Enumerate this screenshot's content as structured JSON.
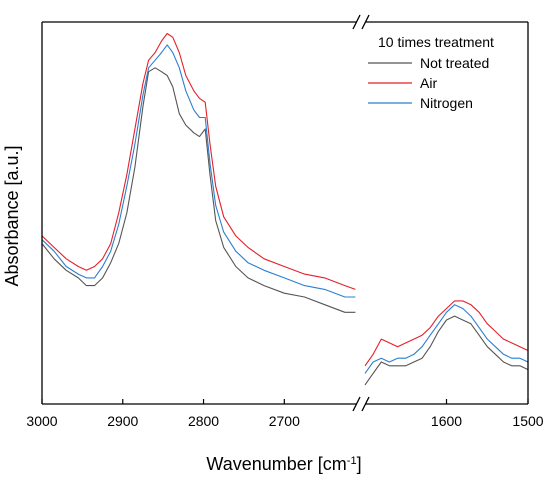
{
  "chart_data": {
    "type": "line",
    "xlabel": "Wavenumber [cm",
    "xlabel_sup": "-1",
    "xlabel_end": "]",
    "ylabel": "Absorbance [a.u.]",
    "x_axis_reversed": true,
    "broken_x_axis": true,
    "y_ticks_shown": false,
    "legend": {
      "title": "10 times treatment",
      "placement": "top-right",
      "entries": [
        "Not treated",
        "Air",
        "Nitrogen"
      ]
    },
    "panels": [
      {
        "xlim": [
          3000,
          2610
        ],
        "xticks": [
          {
            "value": 3000,
            "label": "3000"
          },
          {
            "value": 2900,
            "label": "2900"
          },
          {
            "value": 2800,
            "label": "2800"
          },
          {
            "value": 2700,
            "label": "2700"
          }
        ]
      },
      {
        "xlim": [
          1700,
          1500
        ],
        "xticks": [
          {
            "value": 1600,
            "label": "1600"
          },
          {
            "value": 1500,
            "label": "1500"
          }
        ]
      }
    ],
    "ylim": [
      0,
      1.0
    ],
    "series": [
      {
        "name": "Not treated",
        "color": "#555555",
        "panel1": [
          [
            3000,
            0.42
          ],
          [
            2985,
            0.38
          ],
          [
            2970,
            0.35
          ],
          [
            2955,
            0.33
          ],
          [
            2945,
            0.31
          ],
          [
            2935,
            0.31
          ],
          [
            2925,
            0.33
          ],
          [
            2915,
            0.37
          ],
          [
            2905,
            0.42
          ],
          [
            2895,
            0.5
          ],
          [
            2885,
            0.62
          ],
          [
            2875,
            0.78
          ],
          [
            2868,
            0.87
          ],
          [
            2860,
            0.88
          ],
          [
            2852,
            0.87
          ],
          [
            2845,
            0.86
          ],
          [
            2838,
            0.83
          ],
          [
            2830,
            0.76
          ],
          [
            2822,
            0.73
          ],
          [
            2812,
            0.71
          ],
          [
            2805,
            0.7
          ],
          [
            2798,
            0.72
          ],
          [
            2792,
            0.6
          ],
          [
            2785,
            0.48
          ],
          [
            2775,
            0.41
          ],
          [
            2760,
            0.36
          ],
          [
            2745,
            0.33
          ],
          [
            2725,
            0.31
          ],
          [
            2700,
            0.29
          ],
          [
            2675,
            0.28
          ],
          [
            2650,
            0.26
          ],
          [
            2625,
            0.24
          ],
          [
            2612,
            0.24
          ]
        ],
        "panel2": [
          [
            1700,
            0.05
          ],
          [
            1690,
            0.08
          ],
          [
            1680,
            0.11
          ],
          [
            1670,
            0.1
          ],
          [
            1660,
            0.1
          ],
          [
            1650,
            0.1
          ],
          [
            1640,
            0.11
          ],
          [
            1630,
            0.12
          ],
          [
            1620,
            0.15
          ],
          [
            1610,
            0.19
          ],
          [
            1600,
            0.22
          ],
          [
            1590,
            0.23
          ],
          [
            1580,
            0.22
          ],
          [
            1570,
            0.21
          ],
          [
            1560,
            0.18
          ],
          [
            1550,
            0.15
          ],
          [
            1540,
            0.13
          ],
          [
            1530,
            0.11
          ],
          [
            1520,
            0.1
          ],
          [
            1510,
            0.1
          ],
          [
            1500,
            0.09
          ]
        ]
      },
      {
        "name": "Air",
        "color": "#e4202a",
        "panel1": [
          [
            3000,
            0.44
          ],
          [
            2985,
            0.41
          ],
          [
            2970,
            0.38
          ],
          [
            2955,
            0.36
          ],
          [
            2945,
            0.35
          ],
          [
            2935,
            0.36
          ],
          [
            2925,
            0.38
          ],
          [
            2915,
            0.42
          ],
          [
            2905,
            0.5
          ],
          [
            2895,
            0.6
          ],
          [
            2885,
            0.72
          ],
          [
            2875,
            0.84
          ],
          [
            2868,
            0.9
          ],
          [
            2860,
            0.92
          ],
          [
            2852,
            0.95
          ],
          [
            2845,
            0.97
          ],
          [
            2838,
            0.96
          ],
          [
            2830,
            0.92
          ],
          [
            2822,
            0.86
          ],
          [
            2812,
            0.82
          ],
          [
            2805,
            0.8
          ],
          [
            2798,
            0.79
          ],
          [
            2792,
            0.68
          ],
          [
            2785,
            0.57
          ],
          [
            2775,
            0.49
          ],
          [
            2760,
            0.44
          ],
          [
            2745,
            0.41
          ],
          [
            2725,
            0.38
          ],
          [
            2700,
            0.36
          ],
          [
            2675,
            0.34
          ],
          [
            2650,
            0.33
          ],
          [
            2625,
            0.31
          ],
          [
            2612,
            0.3
          ]
        ],
        "panel2": [
          [
            1700,
            0.1
          ],
          [
            1690,
            0.13
          ],
          [
            1680,
            0.17
          ],
          [
            1670,
            0.16
          ],
          [
            1660,
            0.15
          ],
          [
            1650,
            0.16
          ],
          [
            1640,
            0.17
          ],
          [
            1630,
            0.18
          ],
          [
            1620,
            0.2
          ],
          [
            1610,
            0.23
          ],
          [
            1600,
            0.25
          ],
          [
            1590,
            0.27
          ],
          [
            1580,
            0.27
          ],
          [
            1570,
            0.26
          ],
          [
            1560,
            0.24
          ],
          [
            1550,
            0.21
          ],
          [
            1540,
            0.19
          ],
          [
            1530,
            0.17
          ],
          [
            1520,
            0.16
          ],
          [
            1510,
            0.15
          ],
          [
            1500,
            0.14
          ]
        ]
      },
      {
        "name": "Nitrogen",
        "color": "#2a7fd4",
        "panel1": [
          [
            3000,
            0.43
          ],
          [
            2985,
            0.4
          ],
          [
            2970,
            0.36
          ],
          [
            2955,
            0.34
          ],
          [
            2945,
            0.33
          ],
          [
            2935,
            0.33
          ],
          [
            2925,
            0.36
          ],
          [
            2915,
            0.4
          ],
          [
            2905,
            0.47
          ],
          [
            2895,
            0.57
          ],
          [
            2885,
            0.68
          ],
          [
            2875,
            0.81
          ],
          [
            2868,
            0.88
          ],
          [
            2860,
            0.9
          ],
          [
            2852,
            0.92
          ],
          [
            2845,
            0.94
          ],
          [
            2838,
            0.92
          ],
          [
            2830,
            0.88
          ],
          [
            2822,
            0.82
          ],
          [
            2812,
            0.77
          ],
          [
            2805,
            0.75
          ],
          [
            2798,
            0.75
          ],
          [
            2792,
            0.63
          ],
          [
            2785,
            0.52
          ],
          [
            2775,
            0.45
          ],
          [
            2760,
            0.4
          ],
          [
            2745,
            0.37
          ],
          [
            2725,
            0.35
          ],
          [
            2700,
            0.33
          ],
          [
            2675,
            0.31
          ],
          [
            2650,
            0.3
          ],
          [
            2625,
            0.28
          ],
          [
            2612,
            0.28
          ]
        ],
        "panel2": [
          [
            1700,
            0.08
          ],
          [
            1690,
            0.11
          ],
          [
            1680,
            0.12
          ],
          [
            1670,
            0.11
          ],
          [
            1660,
            0.12
          ],
          [
            1650,
            0.12
          ],
          [
            1640,
            0.13
          ],
          [
            1630,
            0.15
          ],
          [
            1620,
            0.18
          ],
          [
            1610,
            0.21
          ],
          [
            1600,
            0.24
          ],
          [
            1590,
            0.26
          ],
          [
            1580,
            0.25
          ],
          [
            1570,
            0.23
          ],
          [
            1560,
            0.2
          ],
          [
            1550,
            0.17
          ],
          [
            1540,
            0.15
          ],
          [
            1530,
            0.13
          ],
          [
            1520,
            0.12
          ],
          [
            1510,
            0.12
          ],
          [
            1500,
            0.11
          ]
        ]
      }
    ]
  }
}
